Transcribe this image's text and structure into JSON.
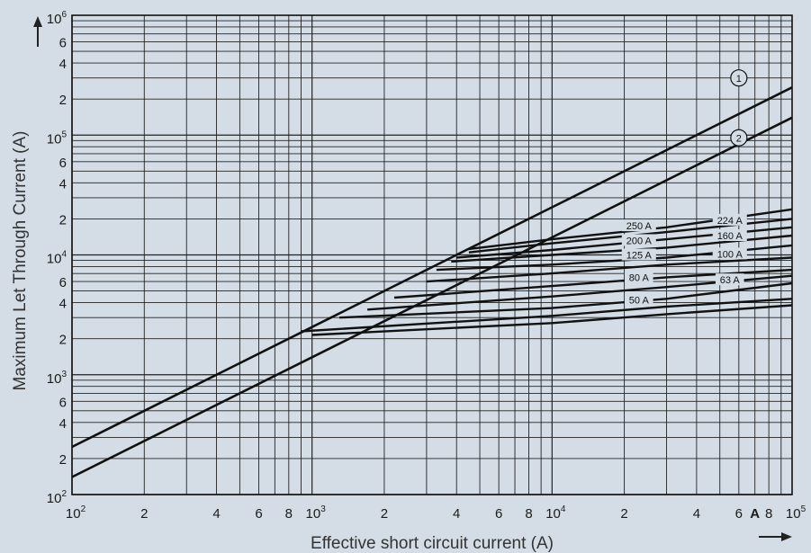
{
  "chart_data": {
    "type": "line",
    "x_scale": "log",
    "y_scale": "log",
    "xlim": [
      100,
      100000
    ],
    "ylim": [
      100,
      1000000
    ],
    "grid": true,
    "xlabel": "Effective short circuit current (A)",
    "ylabel": "Maximum Let Through Current (A)",
    "x_ticks": [
      {
        "value": 100,
        "base": "10",
        "exp": "2"
      },
      {
        "value": 200,
        "label": "2"
      },
      {
        "value": 400,
        "label": "4"
      },
      {
        "value": 600,
        "label": "6"
      },
      {
        "value": 800,
        "label": "8"
      },
      {
        "value": 1000,
        "base": "10",
        "exp": "3"
      },
      {
        "value": 2000,
        "label": "2"
      },
      {
        "value": 4000,
        "label": "4"
      },
      {
        "value": 6000,
        "label": "6"
      },
      {
        "value": 8000,
        "label": "8"
      },
      {
        "value": 10000,
        "base": "10",
        "exp": "4"
      },
      {
        "value": 20000,
        "label": "2"
      },
      {
        "value": 40000,
        "label": "4"
      },
      {
        "value": 60000,
        "label": "6"
      },
      {
        "value": 70000,
        "label": "A",
        "bold": true
      },
      {
        "value": 80000,
        "label": "8"
      },
      {
        "value": 100000,
        "base": "10",
        "exp": "5"
      }
    ],
    "y_ticks": [
      {
        "value": 100,
        "base": "10",
        "exp": "2"
      },
      {
        "value": 200,
        "label": "2"
      },
      {
        "value": 400,
        "label": "4"
      },
      {
        "value": 600,
        "label": "6"
      },
      {
        "value": 1000,
        "base": "10",
        "exp": "3"
      },
      {
        "value": 2000,
        "label": "2"
      },
      {
        "value": 4000,
        "label": "4"
      },
      {
        "value": 6000,
        "label": "6"
      },
      {
        "value": 10000,
        "base": "10",
        "exp": "4"
      },
      {
        "value": 20000,
        "label": "2"
      },
      {
        "value": 40000,
        "label": "4"
      },
      {
        "value": 60000,
        "label": "6"
      },
      {
        "value": 100000,
        "base": "10",
        "exp": "5"
      },
      {
        "value": 200000,
        "label": "2"
      },
      {
        "value": 400000,
        "label": "4"
      },
      {
        "value": 600000,
        "label": "6"
      },
      {
        "value": 1000000,
        "base": "10",
        "exp": "6"
      }
    ],
    "series": [
      {
        "name": "1",
        "label_at": [
          60000,
          300000
        ],
        "points": [
          [
            100,
            250
          ],
          [
            1000,
            2500
          ],
          [
            4000,
            10000
          ],
          [
            10000,
            25000
          ],
          [
            100000,
            250000
          ]
        ]
      },
      {
        "name": "2",
        "label_at": [
          60000,
          95000
        ],
        "points": [
          [
            100,
            140
          ],
          [
            1000,
            1400
          ],
          [
            2000,
            2800
          ],
          [
            10000,
            14000
          ],
          [
            100000,
            140000
          ]
        ]
      },
      {
        "name": "250 A",
        "label_at": [
          23000,
          17500
        ],
        "points": [
          [
            4500,
            11200
          ],
          [
            10000,
            13500
          ],
          [
            30000,
            17000
          ],
          [
            100000,
            24000
          ]
        ]
      },
      {
        "name": "224 A",
        "label_at": [
          55000,
          19500
        ],
        "points": [
          [
            4500,
            10500
          ],
          [
            10000,
            12500
          ],
          [
            30000,
            15500
          ],
          [
            100000,
            20000
          ]
        ]
      },
      {
        "name": "200 A",
        "label_at": [
          23000,
          13200
        ],
        "points": [
          [
            4000,
            9500
          ],
          [
            10000,
            11000
          ],
          [
            30000,
            13500
          ],
          [
            100000,
            17000
          ]
        ]
      },
      {
        "name": "160 A",
        "label_at": [
          55000,
          14500
        ],
        "points": [
          [
            3800,
            8800
          ],
          [
            10000,
            10000
          ],
          [
            30000,
            11500
          ],
          [
            100000,
            14500
          ]
        ]
      },
      {
        "name": "125 A",
        "label_at": [
          23000,
          10000
        ],
        "points": [
          [
            3300,
            7500
          ],
          [
            10000,
            8300
          ],
          [
            30000,
            9500
          ],
          [
            100000,
            12000
          ]
        ]
      },
      {
        "name": "100 A",
        "label_at": [
          55000,
          10200
        ],
        "points": [
          [
            3000,
            6000
          ],
          [
            10000,
            7000
          ],
          [
            30000,
            8300
          ],
          [
            100000,
            9500
          ]
        ]
      },
      {
        "name": "80 A",
        "label_at": [
          23000,
          6500
        ],
        "points": [
          [
            2200,
            4400
          ],
          [
            10000,
            5500
          ],
          [
            30000,
            6500
          ],
          [
            100000,
            7500
          ]
        ]
      },
      {
        "name": "63 A",
        "label_at": [
          55000,
          6200
        ],
        "points": [
          [
            1700,
            3500
          ],
          [
            10000,
            4500
          ],
          [
            30000,
            5400
          ],
          [
            100000,
            6700
          ]
        ]
      },
      {
        "name": "50 A",
        "label_at": [
          23000,
          4200
        ],
        "points": [
          [
            1300,
            3000
          ],
          [
            10000,
            3600
          ],
          [
            30000,
            4300
          ],
          [
            100000,
            5800
          ]
        ]
      },
      {
        "name": "",
        "points": [
          [
            900,
            2300
          ],
          [
            10000,
            3100
          ],
          [
            30000,
            3700
          ],
          [
            100000,
            4300
          ]
        ]
      },
      {
        "name": "",
        "points": [
          [
            1000,
            2150
          ],
          [
            10000,
            2700
          ],
          [
            30000,
            3200
          ],
          [
            100000,
            3800
          ]
        ]
      }
    ]
  }
}
